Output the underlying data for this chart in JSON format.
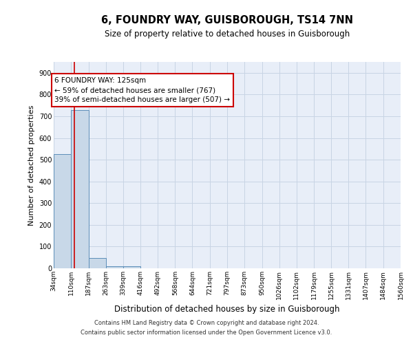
{
  "title": "6, FOUNDRY WAY, GUISBOROUGH, TS14 7NN",
  "subtitle": "Size of property relative to detached houses in Guisborough",
  "xlabel": "Distribution of detached houses by size in Guisborough",
  "ylabel": "Number of detached properties",
  "bin_edges": [
    34,
    110,
    187,
    263,
    339,
    416,
    492,
    568,
    644,
    721,
    797,
    873,
    950,
    1026,
    1102,
    1179,
    1255,
    1331,
    1407,
    1484,
    1560
  ],
  "bin_labels": [
    "34sqm",
    "110sqm",
    "187sqm",
    "263sqm",
    "339sqm",
    "416sqm",
    "492sqm",
    "568sqm",
    "644sqm",
    "721sqm",
    "797sqm",
    "873sqm",
    "950sqm",
    "1026sqm",
    "1102sqm",
    "1179sqm",
    "1255sqm",
    "1331sqm",
    "1407sqm",
    "1484sqm",
    "1560sqm"
  ],
  "counts": [
    525,
    727,
    47,
    11,
    9,
    0,
    0,
    0,
    0,
    0,
    0,
    0,
    0,
    0,
    0,
    0,
    0,
    0,
    0,
    0
  ],
  "bar_color": "#c8d8e8",
  "bar_edge_color": "#5b8db8",
  "property_size": 125,
  "property_line_color": "#cc0000",
  "annotation_line1": "6 FOUNDRY WAY: 125sqm",
  "annotation_line2": "← 59% of detached houses are smaller (767)",
  "annotation_line3": "39% of semi-detached houses are larger (507) →",
  "annotation_box_color": "#cc0000",
  "ylim": [
    0,
    950
  ],
  "yticks": [
    0,
    100,
    200,
    300,
    400,
    500,
    600,
    700,
    800,
    900
  ],
  "grid_color": "#c8d4e4",
  "background_color": "#e8eef8",
  "footer_line1": "Contains HM Land Registry data © Crown copyright and database right 2024.",
  "footer_line2": "Contains public sector information licensed under the Open Government Licence v3.0.",
  "title_fontsize": 10.5,
  "subtitle_fontsize": 8.5,
  "ylabel_fontsize": 8,
  "xlabel_fontsize": 8.5
}
